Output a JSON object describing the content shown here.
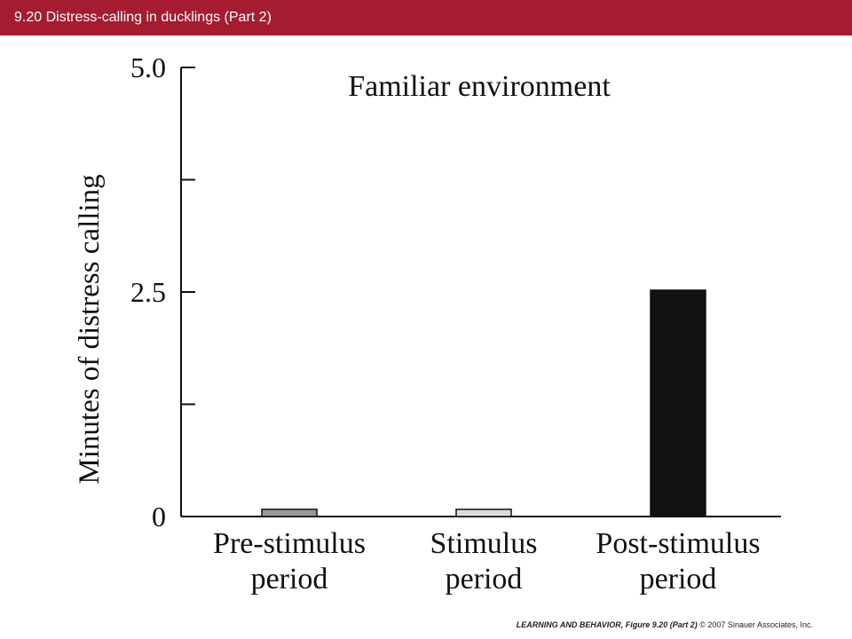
{
  "header": {
    "title": "9.20  Distress-calling in ducklings (Part 2)",
    "color": "#a51c30"
  },
  "footer": {
    "figure_ref": "LEARNING AND BEHAVIOR, Figure 9.20 (Part 2)",
    "copyright": "© 2007 Sinauer Associates, Inc."
  },
  "chart_data": {
    "type": "bar",
    "title": "Familiar environment",
    "ylabel": "Minutes of distress calling",
    "xlabel": "",
    "categories": [
      [
        "Pre-stimulus",
        "period"
      ],
      [
        "Stimulus",
        "period"
      ],
      [
        "Post-stimulus",
        "period"
      ]
    ],
    "values": [
      0.08,
      0.08,
      2.52
    ],
    "bar_colors": [
      "#9a9a9a",
      "#dcdcdc",
      "#111111"
    ],
    "ylim": [
      0,
      5.0
    ],
    "yticks_labeled": [
      "0",
      "2.5",
      "5.0"
    ],
    "ytick_values": [
      0,
      1.25,
      2.5,
      3.75,
      5.0
    ],
    "grid": false,
    "legend": "none"
  }
}
